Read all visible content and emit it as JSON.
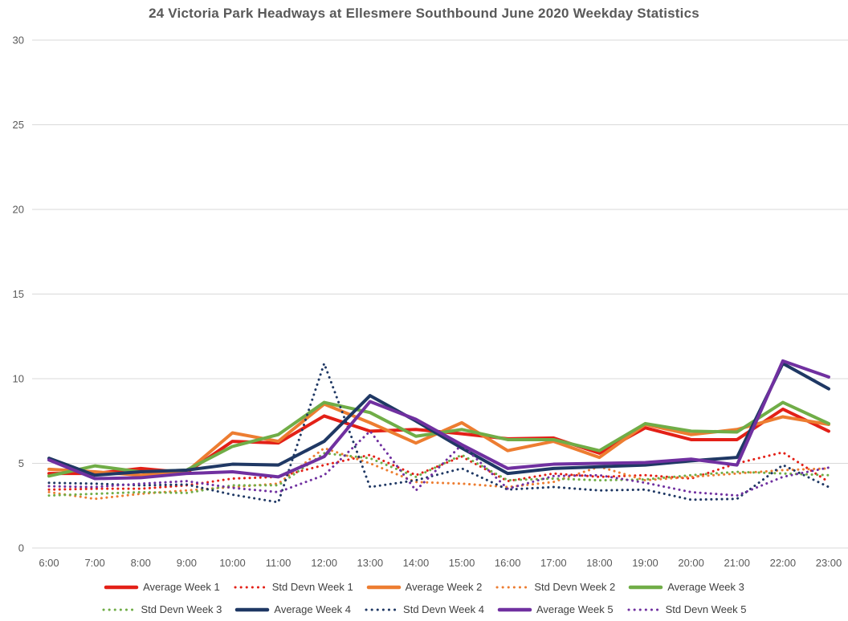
{
  "title": "24 Victoria Park Headways at Ellesmere Southbound June 2020 Weekday Statistics",
  "colors": {
    "background": "#FFFFFF",
    "grid": "#D9D9D9",
    "axis_text": "#595959",
    "title_text": "#595959",
    "legend_text": "#404040",
    "week1": "#E32017",
    "week2": "#ED7D31",
    "week3": "#70AD47",
    "week4": "#1F3864",
    "week5": "#7030A0"
  },
  "chart_data": {
    "type": "line",
    "title": "24 Victoria Park Headways at Ellesmere Southbound June 2020 Weekday Statistics",
    "xlabel": "",
    "ylabel": "",
    "grid": true,
    "legend_position": "bottom",
    "ylim": [
      0,
      30
    ],
    "yticks": [
      0,
      5,
      10,
      15,
      20,
      25,
      30
    ],
    "x_labels": [
      "6:00",
      "7:00",
      "8:00",
      "9:00",
      "10:00",
      "11:00",
      "12:00",
      "13:00",
      "14:00",
      "15:00",
      "16:00",
      "17:00",
      "18:00",
      "19:00",
      "20:00",
      "21:00",
      "22:00",
      "23:00"
    ],
    "series": [
      {
        "name": "Average Week 1",
        "style": "solid",
        "color": "#E32017",
        "values": [
          4.4,
          4.4,
          4.7,
          4.45,
          6.3,
          6.2,
          7.8,
          6.9,
          7.0,
          6.75,
          6.45,
          6.5,
          5.6,
          7.1,
          6.4,
          6.4,
          8.2,
          6.9
        ]
      },
      {
        "name": "Std Devn Week 1",
        "style": "dotted",
        "color": "#E32017",
        "values": [
          3.45,
          3.5,
          3.5,
          3.7,
          4.1,
          4.2,
          4.9,
          5.5,
          4.3,
          5.4,
          3.95,
          4.4,
          4.2,
          4.3,
          4.1,
          5.0,
          5.65,
          3.9
        ]
      },
      {
        "name": "Average Week 2",
        "style": "solid",
        "color": "#ED7D31",
        "values": [
          4.65,
          4.5,
          4.3,
          4.5,
          6.8,
          6.3,
          8.5,
          7.4,
          6.2,
          7.4,
          5.75,
          6.3,
          5.35,
          7.3,
          6.7,
          7.0,
          7.75,
          7.3
        ]
      },
      {
        "name": "Std Devn Week 2",
        "style": "dotted",
        "color": "#ED7D31",
        "values": [
          3.3,
          2.9,
          3.2,
          3.4,
          3.6,
          3.8,
          5.9,
          5.0,
          3.9,
          3.8,
          3.6,
          3.9,
          4.8,
          4.0,
          4.2,
          4.4,
          4.6,
          4.7
        ]
      },
      {
        "name": "Average Week 3",
        "style": "solid",
        "color": "#70AD47",
        "values": [
          4.25,
          4.85,
          4.5,
          4.6,
          6.0,
          6.7,
          8.6,
          8.0,
          6.6,
          7.0,
          6.4,
          6.4,
          5.75,
          7.35,
          6.9,
          6.85,
          8.6,
          7.35
        ]
      },
      {
        "name": "Std Devn Week 3",
        "style": "dotted",
        "color": "#70AD47",
        "values": [
          3.1,
          3.2,
          3.3,
          3.25,
          3.7,
          3.7,
          5.6,
          5.3,
          4.2,
          5.5,
          4.0,
          4.1,
          4.0,
          4.05,
          4.3,
          4.5,
          4.4,
          4.3
        ]
      },
      {
        "name": "Average Week 4",
        "style": "solid",
        "color": "#1F3864",
        "values": [
          5.3,
          4.3,
          4.5,
          4.6,
          4.95,
          4.9,
          6.3,
          9.0,
          7.5,
          5.9,
          4.4,
          4.7,
          4.8,
          4.9,
          5.15,
          5.35,
          10.9,
          9.4
        ]
      },
      {
        "name": "Std Devn Week 4",
        "style": "dotted",
        "color": "#1F3864",
        "values": [
          3.85,
          3.8,
          3.7,
          3.75,
          3.15,
          2.7,
          10.9,
          3.6,
          4.0,
          4.7,
          3.45,
          3.6,
          3.4,
          3.45,
          2.85,
          2.9,
          4.9,
          3.6
        ]
      },
      {
        "name": "Average Week 5",
        "style": "solid",
        "color": "#7030A0",
        "values": [
          5.2,
          4.1,
          4.15,
          4.4,
          4.5,
          4.2,
          5.4,
          8.65,
          7.6,
          6.1,
          4.7,
          4.95,
          5.0,
          5.05,
          5.25,
          4.9,
          11.05,
          10.1
        ]
      },
      {
        "name": "Std Devn Week 5",
        "style": "dotted",
        "color": "#7030A0",
        "values": [
          3.65,
          3.6,
          3.8,
          3.95,
          3.55,
          3.3,
          4.3,
          6.9,
          3.4,
          6.1,
          3.5,
          4.25,
          4.3,
          3.85,
          3.3,
          3.1,
          4.2,
          4.75
        ]
      }
    ]
  }
}
